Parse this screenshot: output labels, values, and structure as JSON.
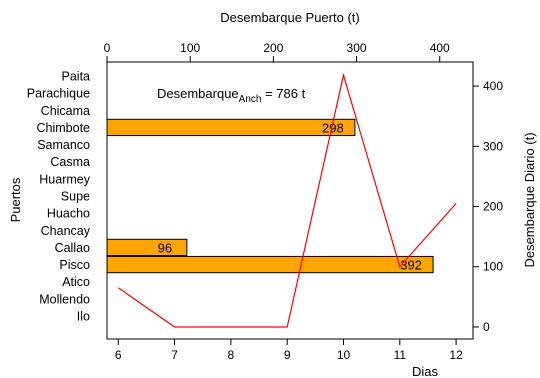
{
  "chart_data": {
    "type": "bar+line",
    "top_axis": {
      "title": "Desembarque Puerto (t)",
      "range": [
        0,
        440
      ],
      "ticks": [
        0,
        100,
        200,
        300,
        400
      ]
    },
    "bottom_axis": {
      "title": "Dias",
      "range": [
        5.8,
        12.3
      ],
      "ticks": [
        6,
        7,
        8,
        9,
        10,
        11,
        12
      ]
    },
    "left_axis": {
      "title": "Puertos",
      "categories": [
        "Paita",
        "Parachique",
        "Chicama",
        "Chimbote",
        "Samanco",
        "Casma",
        "Huarmey",
        "Supe",
        "Huacho",
        "Chancay",
        "Callao",
        "Pisco",
        "Atico",
        "Mollendo",
        "Ilo"
      ]
    },
    "right_axis": {
      "title": "Desembarque Diario (t)",
      "range": [
        -20,
        440
      ],
      "ticks": [
        0,
        100,
        200,
        300,
        400
      ]
    },
    "bars": [
      {
        "port": "Chimbote",
        "value": 298,
        "label": "298"
      },
      {
        "port": "Callao",
        "value": 96,
        "label": "96"
      },
      {
        "port": "Pisco",
        "value": 392,
        "label": "392"
      }
    ],
    "line": {
      "x": [
        6,
        7,
        9,
        10,
        11,
        12
      ],
      "y": [
        65,
        0,
        0,
        418,
        100,
        205
      ],
      "color": "#ff0000"
    },
    "annotation": {
      "prefix": "Desembarque",
      "subscript": "Anch",
      "suffix": " = 786 t"
    },
    "bar_color": "#ffa500",
    "grid": false
  }
}
